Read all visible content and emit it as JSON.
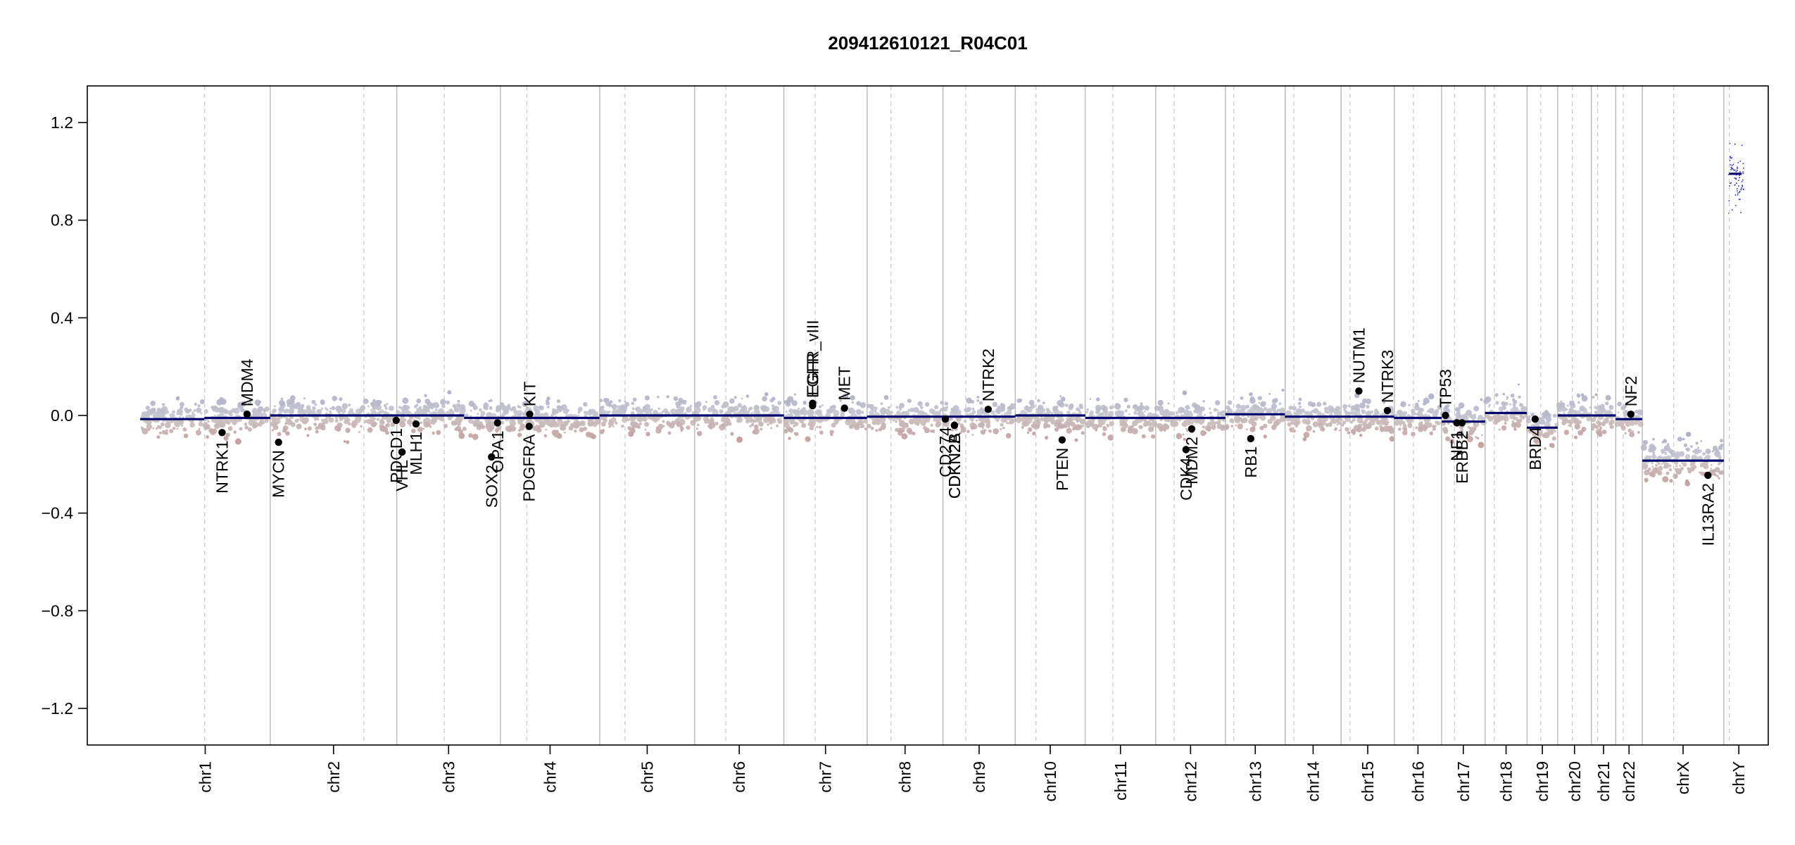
{
  "chart_data": {
    "type": "scatter",
    "title": "209412610121_R04C01",
    "xlabel": "",
    "ylabel": "",
    "ylim": [
      -1.35,
      1.35
    ],
    "y_ticks": [
      -1.2,
      -0.8,
      -0.4,
      0.0,
      0.4,
      0.8,
      1.2
    ],
    "y_tick_labels": [
      "−1.2",
      "−0.8",
      "−0.4",
      "0.0",
      "0.4",
      "0.8",
      "1.2"
    ],
    "grid": false,
    "colors": {
      "gain": "#9a9cc0",
      "loss": "#b06a6a",
      "segment": "#00006e",
      "gene_point": "#000000",
      "chrom_boundary": "#b8b8b8",
      "centromere": "#c8c8c8"
    },
    "chromosomes": [
      {
        "name": "chr1",
        "start": 0,
        "end": 248.96,
        "centromere": 123.4
      },
      {
        "name": "chr2",
        "start": 248.96,
        "end": 491.15,
        "centromere": 428.1
      },
      {
        "name": "chr3",
        "start": 491.15,
        "end": 689.45,
        "centromere": 582.0
      },
      {
        "name": "chr4",
        "start": 689.45,
        "end": 879.66,
        "centromere": 740.0
      },
      {
        "name": "chr5",
        "start": 879.66,
        "end": 1061.2,
        "centromere": 928.0
      },
      {
        "name": "chr6",
        "start": 1061.2,
        "end": 1232.0,
        "centromere": 1120.8
      },
      {
        "name": "chr7",
        "start": 1232.0,
        "end": 1391.35,
        "centromere": 1291.9
      },
      {
        "name": "chr8",
        "start": 1391.35,
        "end": 1536.49,
        "centromere": 1437.0
      },
      {
        "name": "chr9",
        "start": 1536.49,
        "end": 1674.88,
        "centromere": 1580.0
      },
      {
        "name": "chr10",
        "start": 1674.88,
        "end": 1808.67,
        "centromere": 1714.5
      },
      {
        "name": "chr11",
        "start": 1808.67,
        "end": 1943.75,
        "centromere": 1861.8
      },
      {
        "name": "chr12",
        "start": 1943.75,
        "end": 2077.02,
        "centromere": 1979.2
      },
      {
        "name": "chr13",
        "start": 2077.02,
        "end": 2191.39,
        "centromere": 2093.0
      },
      {
        "name": "chr14",
        "start": 2191.39,
        "end": 2298.43,
        "centromere": 2208.0
      },
      {
        "name": "chr15",
        "start": 2298.43,
        "end": 2400.42,
        "centromere": 2315.5
      },
      {
        "name": "chr16",
        "start": 2400.42,
        "end": 2490.76,
        "centromere": 2436.9
      },
      {
        "name": "chr17",
        "start": 2490.76,
        "end": 2574.02,
        "centromere": 2515.5
      },
      {
        "name": "chr18",
        "start": 2574.02,
        "end": 2654.39,
        "centromere": 2591.7
      },
      {
        "name": "chr19",
        "start": 2654.39,
        "end": 2712.99,
        "centromere": 2680.6
      },
      {
        "name": "chr20",
        "start": 2712.99,
        "end": 2777.43,
        "centromere": 2741.1
      },
      {
        "name": "chr21",
        "start": 2777.43,
        "end": 2824.14,
        "centromere": 2789.5
      },
      {
        "name": "chr22",
        "start": 2824.14,
        "end": 2874.95,
        "centromere": 2838.6
      },
      {
        "name": "chrX",
        "start": 2874.95,
        "end": 3031.0,
        "centromere": 2935.0
      },
      {
        "name": "chrY",
        "start": 3031.0,
        "end": 3088.3,
        "centromere": 3041.4
      }
    ],
    "segments": [
      {
        "x0": 0,
        "x1": 123,
        "y": -0.015
      },
      {
        "x0": 123,
        "x1": 249,
        "y": -0.01
      },
      {
        "x0": 249,
        "x1": 620,
        "y": 0.0
      },
      {
        "x0": 620,
        "x1": 879,
        "y": -0.01
      },
      {
        "x0": 879,
        "x1": 1232,
        "y": 0.0
      },
      {
        "x0": 1232,
        "x1": 1391,
        "y": -0.01
      },
      {
        "x0": 1391,
        "x1": 1675,
        "y": -0.005
      },
      {
        "x0": 1675,
        "x1": 1809,
        "y": 0.0
      },
      {
        "x0": 1809,
        "x1": 2077,
        "y": -0.01
      },
      {
        "x0": 2077,
        "x1": 2191,
        "y": 0.005
      },
      {
        "x0": 2191,
        "x1": 2298,
        "y": -0.005
      },
      {
        "x0": 2298,
        "x1": 2400,
        "y": -0.005
      },
      {
        "x0": 2400,
        "x1": 2491,
        "y": -0.01
      },
      {
        "x0": 2491,
        "x1": 2574,
        "y": -0.025
      },
      {
        "x0": 2574,
        "x1": 2654,
        "y": 0.01
      },
      {
        "x0": 2654,
        "x1": 2713,
        "y": -0.05
      },
      {
        "x0": 2713,
        "x1": 2777,
        "y": 0.0
      },
      {
        "x0": 2777,
        "x1": 2824,
        "y": 0.0
      },
      {
        "x0": 2824,
        "x1": 2875,
        "y": -0.015
      },
      {
        "x0": 2875,
        "x1": 3031,
        "y": -0.185
      },
      {
        "x0": 3041,
        "x1": 3065,
        "y": 0.99
      }
    ],
    "genes": [
      {
        "name": "NTRK1",
        "x": 156.8,
        "y": -0.07,
        "side": "below"
      },
      {
        "name": "MDM4",
        "x": 204.5,
        "y": 0.005,
        "side": "above"
      },
      {
        "name": "MYCN",
        "x": 264.8,
        "y": -0.11,
        "side": "below"
      },
      {
        "name": "PDCD1",
        "x": 490.0,
        "y": -0.02,
        "side": "below"
      },
      {
        "name": "VHL",
        "x": 501.3,
        "y": -0.15,
        "side": "below"
      },
      {
        "name": "MLH1",
        "x": 528.0,
        "y": -0.035,
        "side": "below"
      },
      {
        "name": "SOX2",
        "x": 672.5,
        "y": -0.17,
        "side": "below"
      },
      {
        "name": "OPA1",
        "x": 684.0,
        "y": -0.03,
        "side": "below"
      },
      {
        "name": "PDGFRA",
        "x": 744.5,
        "y": -0.045,
        "side": "below"
      },
      {
        "name": "KIT",
        "x": 745.5,
        "y": 0.005,
        "side": "above"
      },
      {
        "name": "EGFR",
        "x": 1287.0,
        "y": 0.04,
        "side": "above"
      },
      {
        "name": "EGFR_vIII",
        "x": 1287.0,
        "y": 0.05,
        "side": "above"
      },
      {
        "name": "MET",
        "x": 1348.0,
        "y": 0.03,
        "side": "above"
      },
      {
        "name": "CD274",
        "x": 1541.0,
        "y": -0.015,
        "side": "below"
      },
      {
        "name": "CDKN2A",
        "x": 1558.5,
        "y": -0.04,
        "side": "below"
      },
      {
        "name": "CDKN2B",
        "x": 1558.5,
        "y": -0.04,
        "side": "below"
      },
      {
        "name": "NTRK2",
        "x": 1623.0,
        "y": 0.025,
        "side": "above"
      },
      {
        "name": "PTEN",
        "x": 1764.6,
        "y": -0.1,
        "side": "below"
      },
      {
        "name": "CDK4",
        "x": 2001.5,
        "y": -0.14,
        "side": "below"
      },
      {
        "name": "MDM2",
        "x": 2012.5,
        "y": -0.055,
        "side": "below"
      },
      {
        "name": "RB1",
        "x": 2125.5,
        "y": -0.095,
        "side": "below"
      },
      {
        "name": "NUTM1",
        "x": 2332.5,
        "y": 0.1,
        "side": "above"
      },
      {
        "name": "NTRK3",
        "x": 2387.0,
        "y": 0.02,
        "side": "above"
      },
      {
        "name": "TP53",
        "x": 2498.3,
        "y": 0.0,
        "side": "above"
      },
      {
        "name": "NF1",
        "x": 2520.0,
        "y": -0.03,
        "side": "below"
      },
      {
        "name": "ERBB2",
        "x": 2530.0,
        "y": -0.03,
        "side": "below"
      },
      {
        "name": "BRD4",
        "x": 2669.8,
        "y": -0.015,
        "side": "below"
      },
      {
        "name": "NF2",
        "x": 2853.0,
        "y": 0.005,
        "side": "above"
      },
      {
        "name": "IL13RA2",
        "x": 3000.5,
        "y": -0.245,
        "side": "below"
      }
    ]
  }
}
